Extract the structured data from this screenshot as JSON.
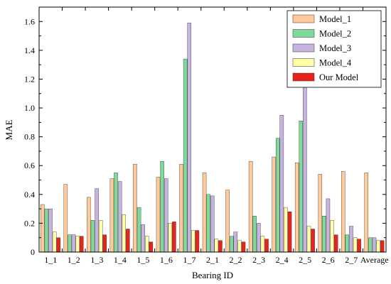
{
  "chart_data": {
    "type": "bar",
    "xlabel": "Bearing ID",
    "ylabel": "MAE",
    "ylim": [
      0,
      1.7
    ],
    "yticks": [
      "0",
      "0.2",
      "0.4",
      "0.6",
      "0.8",
      "1.0",
      "1.2",
      "1.4",
      "1.6"
    ],
    "ytick_values": [
      0,
      0.2,
      0.4,
      0.6,
      0.8,
      1.0,
      1.2,
      1.4,
      1.6
    ],
    "grid": false,
    "legend_position": "top-right",
    "categories": [
      "1_1",
      "1_2",
      "1_3",
      "1_4",
      "1_5",
      "1_6",
      "1_7",
      "2_1",
      "2_2",
      "2_3",
      "2_4",
      "2_5",
      "2_6",
      "2_7",
      "Average"
    ],
    "series": [
      {
        "name": "Model_1",
        "color": "#FFC99A",
        "values": [
          0.33,
          0.47,
          0.38,
          0.51,
          0.61,
          0.52,
          0.61,
          0.55,
          0.43,
          0.63,
          0.66,
          0.62,
          0.54,
          0.56,
          0.55
        ]
      },
      {
        "name": "Model_2",
        "color": "#7FD99A",
        "values": [
          0.3,
          0.12,
          0.22,
          0.55,
          0.31,
          0.63,
          1.34,
          0.4,
          0.11,
          0.25,
          0.79,
          0.91,
          0.25,
          0.12,
          0.1
        ]
      },
      {
        "name": "Model_3",
        "color": "#C6B3E0",
        "values": [
          0.3,
          0.12,
          0.44,
          0.49,
          0.19,
          0.51,
          1.59,
          0.39,
          0.14,
          0.2,
          0.95,
          1.25,
          0.37,
          0.18,
          0.1
        ]
      },
      {
        "name": "Model_4",
        "color": "#FFFFA8",
        "values": [
          0.14,
          0.11,
          0.22,
          0.26,
          0.11,
          0.2,
          0.15,
          0.09,
          0.08,
          0.11,
          0.31,
          0.18,
          0.22,
          0.1,
          0.08
        ]
      },
      {
        "name": "Our Model",
        "color": "#E8231C",
        "values": [
          0.1,
          0.11,
          0.12,
          0.16,
          0.07,
          0.21,
          0.15,
          0.08,
          0.07,
          0.09,
          0.28,
          0.16,
          0.12,
          0.09,
          0.08
        ]
      }
    ]
  }
}
